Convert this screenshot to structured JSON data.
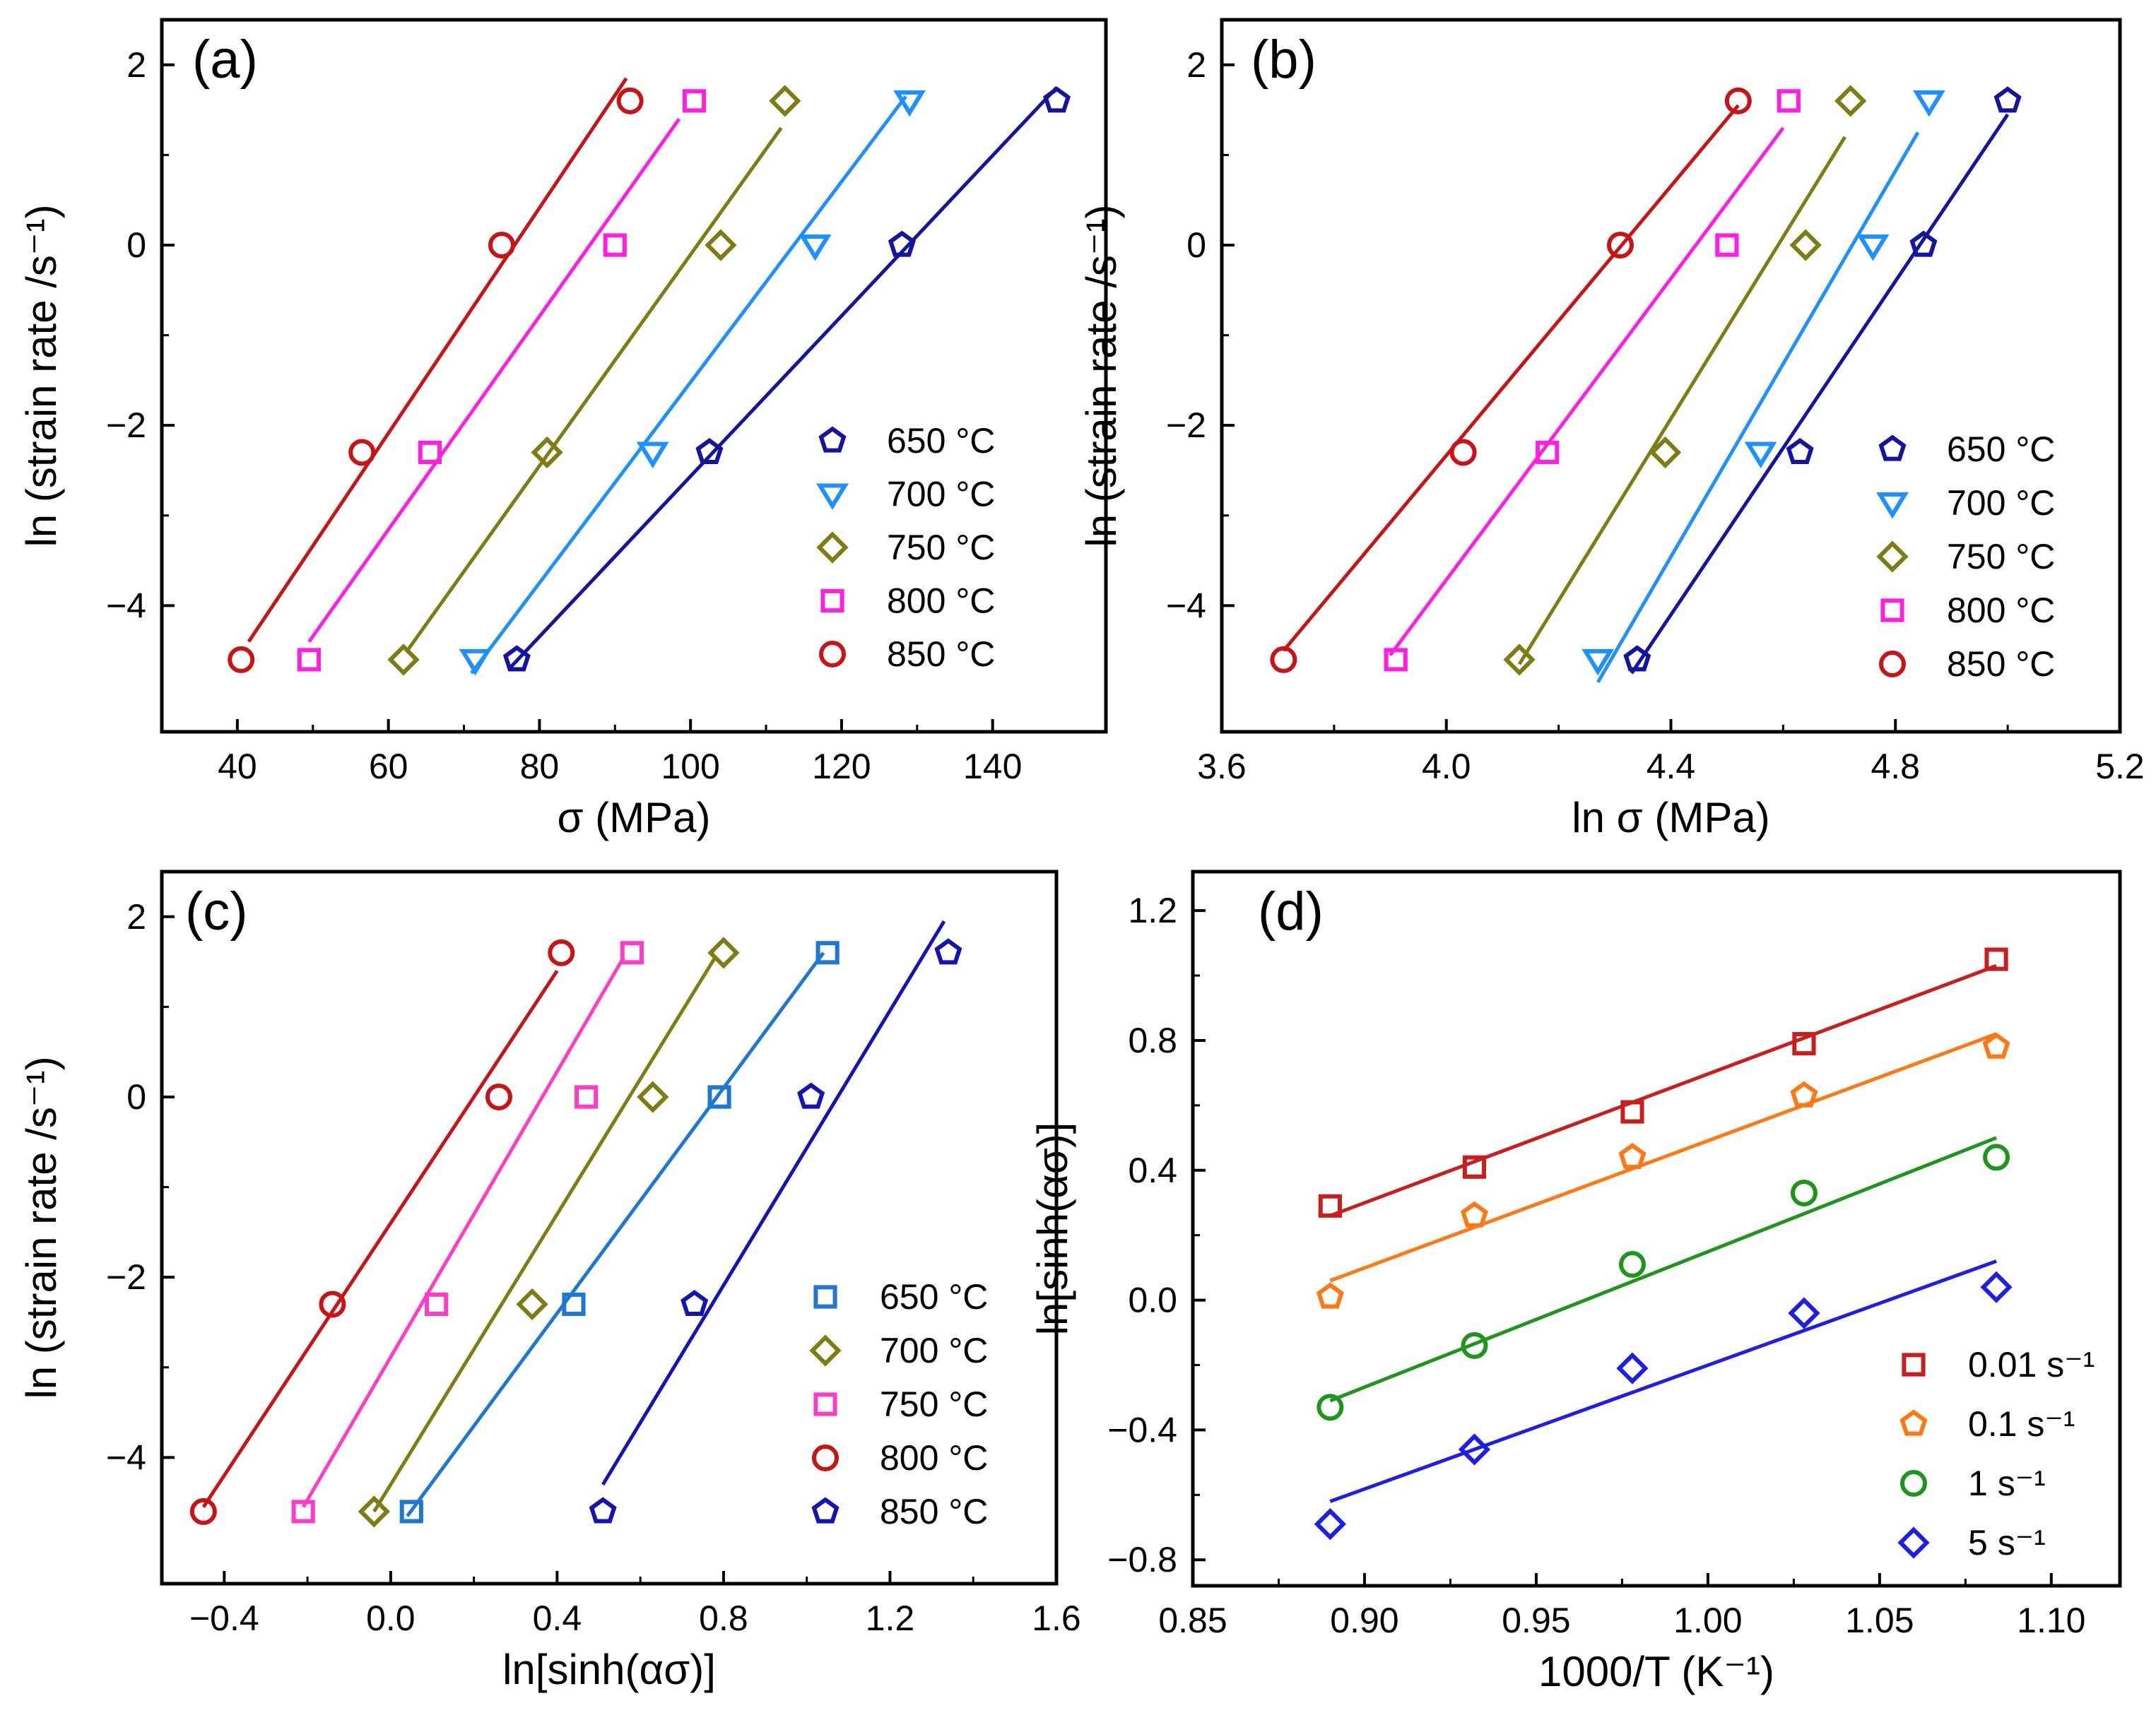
{
  "chart_data": [
    {
      "type": "scatter",
      "panel": "(a)",
      "xlabel": "σ (MPa)",
      "ylabel": "ln (strain rate /s⁻¹)",
      "xlim": [
        30,
        155
      ],
      "ylim": [
        -5.4,
        2.5
      ],
      "xticks": [
        40,
        60,
        80,
        100,
        120,
        140
      ],
      "yticks": [
        -4,
        -2,
        0,
        2
      ],
      "legend_position": "bottom-right",
      "series": [
        {
          "name": "650 °C",
          "color": "#1414a0",
          "marker": "pentagon",
          "x": [
            77,
            102.5,
            128,
            148.5
          ],
          "y": [
            -4.6,
            -2.3,
            0,
            1.6
          ],
          "fit": {
            "x": [
              76,
              148.5
            ],
            "y": [
              -4.7,
              1.75
            ]
          }
        },
        {
          "name": "700 °C",
          "color": "#1e90ff",
          "marker": "triangle-down",
          "x": [
            71.5,
            95,
            116.5,
            129
          ],
          "y": [
            -4.6,
            -2.3,
            0,
            1.6
          ],
          "fit": {
            "x": [
              71,
              128.5
            ],
            "y": [
              -4.75,
              1.65
            ]
          }
        },
        {
          "name": "750 °C",
          "color": "#7d7d14",
          "marker": "diamond",
          "x": [
            62,
            81,
            104,
            112.5
          ],
          "y": [
            -4.6,
            -2.3,
            0,
            1.6
          ],
          "fit": {
            "x": [
              62.5,
              112
            ],
            "y": [
              -4.5,
              1.3
            ]
          }
        },
        {
          "name": "800 °C",
          "color": "#ff1ee1",
          "marker": "square",
          "x": [
            49.5,
            65.5,
            90,
            100.5
          ],
          "y": [
            -4.6,
            -2.3,
            0,
            1.6
          ],
          "fit": {
            "x": [
              49.5,
              98.5
            ],
            "y": [
              -4.4,
              1.4
            ]
          }
        },
        {
          "name": "850 °C",
          "color": "#c81414",
          "marker": "circle",
          "x": [
            40.5,
            56.5,
            75,
            92
          ],
          "y": [
            -4.6,
            -2.3,
            0,
            1.6
          ],
          "fit": {
            "x": [
              41.5,
              91.5
            ],
            "y": [
              -4.4,
              1.85
            ]
          }
        }
      ]
    },
    {
      "type": "scatter",
      "panel": "(b)",
      "xlabel": "ln σ (MPa)",
      "ylabel": "ln (strain rate /s⁻¹)",
      "xlim": [
        3.6,
        5.2
      ],
      "ylim": [
        -5.4,
        2.5
      ],
      "xticks": [
        3.6,
        4.0,
        4.4,
        4.8,
        5.2
      ],
      "yticks": [
        -4,
        -2,
        0,
        2
      ],
      "legend_position": "bottom-right",
      "series": [
        {
          "name": "650 °C",
          "color": "#1414a0",
          "marker": "pentagon",
          "x": [
            4.34,
            4.63,
            4.85,
            5.0
          ],
          "y": [
            -4.6,
            -2.3,
            0,
            1.6
          ],
          "fit": {
            "x": [
              4.33,
              5.0
            ],
            "y": [
              -4.75,
              1.45
            ]
          }
        },
        {
          "name": "700 °C",
          "color": "#1e90ff",
          "marker": "triangle-down",
          "x": [
            4.27,
            4.56,
            4.76,
            4.86
          ],
          "y": [
            -4.6,
            -2.3,
            0,
            1.6
          ],
          "fit": {
            "x": [
              4.27,
              4.84
            ],
            "y": [
              -4.85,
              1.25
            ]
          }
        },
        {
          "name": "750 °C",
          "color": "#7d7d14",
          "marker": "diamond",
          "x": [
            4.13,
            4.39,
            4.64,
            4.72
          ],
          "y": [
            -4.6,
            -2.3,
            0,
            1.6
          ],
          "fit": {
            "x": [
              4.13,
              4.71
            ],
            "y": [
              -4.65,
              1.2
            ]
          }
        },
        {
          "name": "800 °C",
          "color": "#ff1ee1",
          "marker": "square",
          "x": [
            3.91,
            4.18,
            4.5,
            4.61
          ],
          "y": [
            -4.6,
            -2.3,
            0,
            1.6
          ],
          "fit": {
            "x": [
              3.9,
              4.6
            ],
            "y": [
              -4.55,
              1.3
            ]
          }
        },
        {
          "name": "850 °C",
          "color": "#c81414",
          "marker": "circle",
          "x": [
            3.71,
            4.03,
            4.31,
            4.52
          ],
          "y": [
            -4.6,
            -2.3,
            0,
            1.6
          ],
          "fit": {
            "x": [
              3.71,
              4.52
            ],
            "y": [
              -4.5,
              1.55
            ]
          }
        }
      ]
    },
    {
      "type": "scatter",
      "panel": "(c)",
      "xlabel": "ln[sinh(ασ)]",
      "ylabel": "ln (strain rate /s⁻¹)",
      "xlim": [
        -0.55,
        1.6
      ],
      "ylim": [
        -5.4,
        2.5
      ],
      "xticks": [
        -0.4,
        0.0,
        0.4,
        0.8,
        1.2,
        1.6
      ],
      "yticks": [
        -4,
        -2,
        0,
        2
      ],
      "legend_position": "bottom-right",
      "series": [
        {
          "name": "650 °C",
          "color": "#1e78d2",
          "marker": "square",
          "x": [
            0.05,
            0.44,
            0.79,
            1.05
          ],
          "y": [
            -4.6,
            -2.3,
            0,
            1.6
          ],
          "fit": {
            "x": [
              0.04,
              1.04
            ],
            "y": [
              -4.65,
              1.6
            ]
          }
        },
        {
          "name": "700 °C",
          "color": "#7d7d14",
          "marker": "diamond",
          "x": [
            -0.04,
            0.34,
            0.63,
            0.8
          ],
          "y": [
            -4.6,
            -2.3,
            0,
            1.6
          ],
          "fit": {
            "x": [
              -0.04,
              0.78
            ],
            "y": [
              -4.6,
              1.55
            ]
          }
        },
        {
          "name": "750 °C",
          "color": "#ff3cc8",
          "marker": "square",
          "x": [
            -0.21,
            0.11,
            0.47,
            0.58
          ],
          "y": [
            -4.6,
            -2.3,
            0,
            1.6
          ],
          "fit": {
            "x": [
              -0.21,
              0.56
            ],
            "y": [
              -4.55,
              1.55
            ]
          }
        },
        {
          "name": "800 °C",
          "color": "#c81414",
          "marker": "circle",
          "x": [
            -0.45,
            -0.14,
            0.26,
            0.41
          ],
          "y": [
            -4.6,
            -2.3,
            0,
            1.6
          ],
          "fit": {
            "x": [
              -0.45,
              0.4
            ],
            "y": [
              -4.55,
              1.4
            ]
          }
        },
        {
          "name": "850 °C",
          "color": "#1414b4",
          "marker": "pentagon",
          "x": [
            0.51,
            0.73,
            1.01,
            1.34
          ],
          "y": [
            -4.6,
            -2.3,
            0,
            1.6
          ],
          "fit": {
            "x": [
              0.51,
              1.33
            ],
            "y": [
              -4.3,
              1.95
            ]
          }
        }
      ]
    },
    {
      "type": "scatter",
      "panel": "(d)",
      "xlabel": "1000/T (K⁻¹)",
      "ylabel": "ln[sinh(ασ)]",
      "xlim": [
        0.85,
        1.12
      ],
      "ylim": [
        -0.88,
        1.32
      ],
      "xticks": [
        0.85,
        0.9,
        0.95,
        1.0,
        1.05,
        1.1
      ],
      "yticks": [
        -0.8,
        -0.4,
        0.0,
        0.4,
        0.8,
        1.2
      ],
      "legend_position": "bottom-right",
      "series": [
        {
          "name": "0.01 s⁻¹",
          "color": "#c81e1e",
          "marker": "square",
          "x": [
            0.89,
            0.932,
            0.978,
            1.028,
            1.084
          ],
          "y": [
            0.29,
            0.41,
            0.58,
            0.79,
            1.05
          ],
          "fit": {
            "x": [
              0.89,
              1.084
            ],
            "y": [
              0.26,
              1.03
            ]
          }
        },
        {
          "name": "0.1 s⁻¹",
          "color": "#ff7814",
          "marker": "pentagon",
          "x": [
            0.89,
            0.932,
            0.978,
            1.028,
            1.084
          ],
          "y": [
            0.01,
            0.26,
            0.44,
            0.63,
            0.78
          ],
          "fit": {
            "x": [
              0.89,
              1.084
            ],
            "y": [
              0.06,
              0.82
            ]
          }
        },
        {
          "name": "1 s⁻¹",
          "color": "#1e961e",
          "marker": "circle",
          "x": [
            0.89,
            0.932,
            0.978,
            1.028,
            1.084
          ],
          "y": [
            -0.33,
            -0.14,
            0.11,
            0.33,
            0.44
          ],
          "fit": {
            "x": [
              0.89,
              1.084
            ],
            "y": [
              -0.31,
              0.5
            ]
          }
        },
        {
          "name": "5 s⁻¹",
          "color": "#1e1ee6",
          "marker": "diamond",
          "x": [
            0.89,
            0.932,
            0.978,
            1.028,
            1.084
          ],
          "y": [
            -0.69,
            -0.46,
            -0.21,
            -0.04,
            0.04
          ],
          "fit": {
            "x": [
              0.89,
              1.084
            ],
            "y": [
              -0.62,
              0.12
            ]
          }
        }
      ]
    }
  ]
}
